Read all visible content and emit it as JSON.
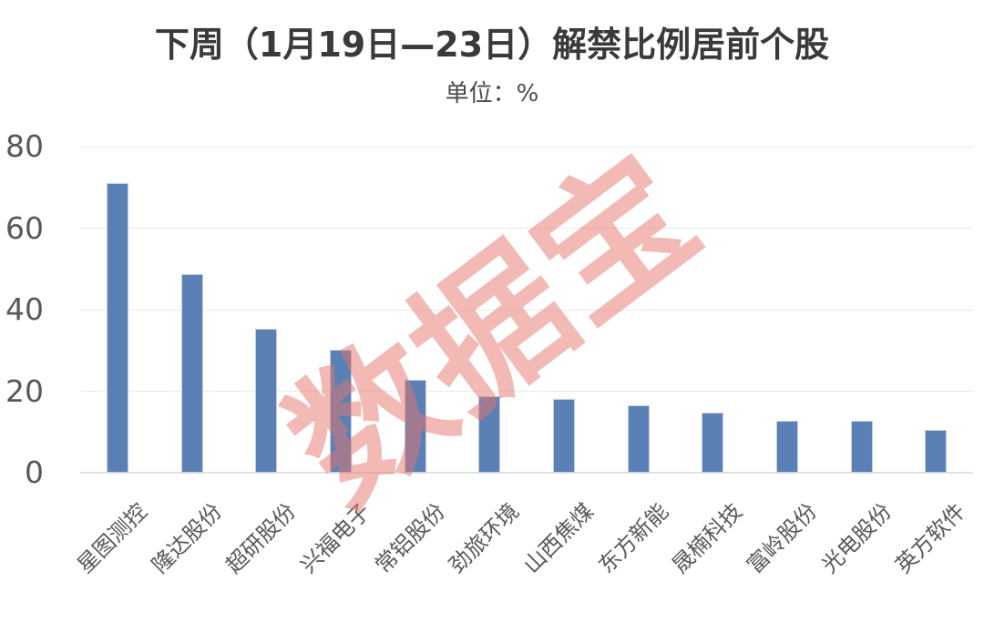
{
  "page": {
    "title": "下周（1月19日—23日）解禁比例居前个股",
    "subtitle": "单位：  %",
    "watermark": "数据宝"
  },
  "colors": {
    "bar": "#5a80b6",
    "bar_border": "#c3d0e5",
    "watermark_rgba": "rgba(229,115,108,0.5)",
    "gridline": "#eaeaea",
    "axis_line": "#e2e2e2",
    "tick_text": "#595959",
    "title_text": "#3a3a3a"
  },
  "chart_data": {
    "type": "bar",
    "title": "下周（1月19日—23日）解禁比例居前个股",
    "subtitle": "单位：%",
    "xlabel": "",
    "ylabel": "单位：%",
    "categories": [
      "星图测控",
      "隆达股份",
      "超研股份",
      "兴福电子",
      "常铝股份",
      "劲旅环境",
      "山西焦煤",
      "东方新能",
      "晟楠科技",
      "富岭股份",
      "光电股份",
      "英方软件"
    ],
    "values": [
      71.0,
      48.7,
      35.2,
      30.2,
      22.9,
      18.8,
      18.0,
      16.5,
      14.8,
      12.7,
      12.8,
      10.4
    ],
    "ylim": [
      0,
      80
    ],
    "yticks": [
      0,
      20,
      40,
      60,
      80
    ],
    "grid": true,
    "legend": false,
    "annotations": [
      "数据宝"
    ],
    "bar_color": "#5a80b6"
  }
}
